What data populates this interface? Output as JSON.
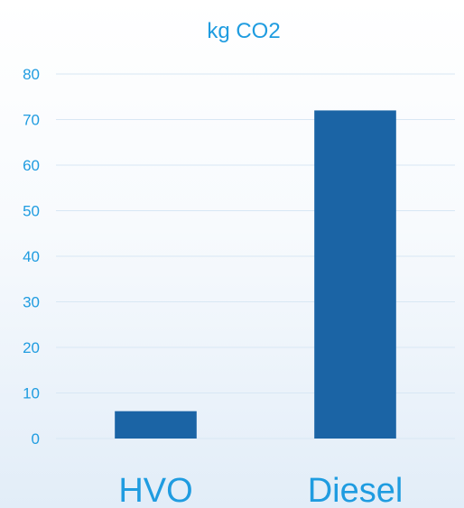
{
  "chart_data": {
    "type": "bar",
    "title": "kg CO2",
    "categories": [
      "HVO",
      "Diesel"
    ],
    "values": [
      6,
      72
    ],
    "xlabel": "",
    "ylabel": "",
    "ylim": [
      0,
      80
    ],
    "yticks": [
      0,
      10,
      20,
      30,
      40,
      50,
      60,
      70,
      80
    ],
    "grid": true,
    "legend": "none",
    "colors": {
      "bar": "#1b64a5",
      "text": "#1f9ce0",
      "grid": "#d8e7f4"
    }
  }
}
